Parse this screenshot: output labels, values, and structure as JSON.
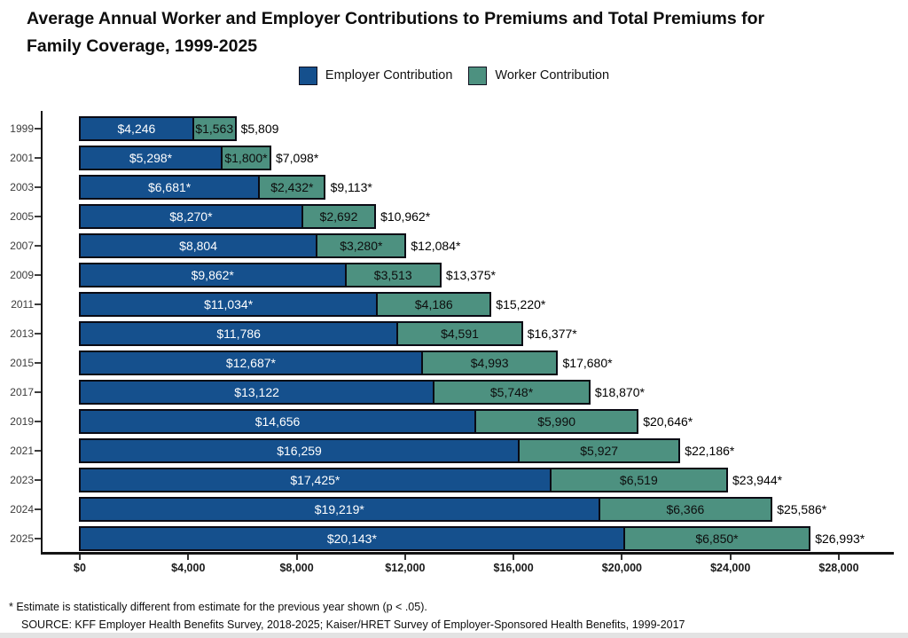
{
  "title": {
    "line1": "Average Annual Worker and Employer Contributions to Premiums and Total Premiums for",
    "line2": "Family Coverage, 1999-2025",
    "full": "Average Annual Worker and Employer Contributions to Premiums and Total Premiums for Family Coverage, 1999-2025"
  },
  "legend": [
    {
      "label": "Employer Contribution",
      "color": "#15508D"
    },
    {
      "label": "Worker Contribution",
      "color": "#4D9180"
    }
  ],
  "chart_data": {
    "type": "bar",
    "orientation": "horizontal",
    "stacked": true,
    "xlim": [
      0,
      28000
    ],
    "grid": false,
    "legend_position": "top",
    "categories": [
      "1999",
      "2001",
      "2003",
      "2005",
      "2007",
      "2009",
      "2011",
      "2013",
      "2015",
      "2017",
      "2019",
      "2021",
      "2023",
      "2024",
      "2025"
    ],
    "series": [
      {
        "name": "Employer Contribution",
        "color": "#15508D",
        "values": [
          4246,
          5298,
          6681,
          8270,
          8804,
          9862,
          11034,
          11786,
          12687,
          13122,
          14656,
          16259,
          17425,
          19219,
          20143
        ],
        "labels": [
          "$4,246",
          "$5,298*",
          "$6,681*",
          "$8,270*",
          "$8,804",
          "$9,862*",
          "$11,034*",
          "$11,786",
          "$12,687*",
          "$13,122",
          "$14,656",
          "$16,259",
          "$17,425*",
          "$19,219*",
          "$20,143*"
        ]
      },
      {
        "name": "Worker Contribution",
        "color": "#4D9180",
        "values": [
          1563,
          1800,
          2432,
          2692,
          3280,
          3513,
          4186,
          4591,
          4993,
          5748,
          5990,
          5927,
          6519,
          6366,
          6850
        ],
        "labels": [
          "$1,563",
          "$1,800*",
          "$2,432*",
          "$2,692",
          "$3,280*",
          "$3,513",
          "$4,186",
          "$4,591",
          "$4,993",
          "$5,748*",
          "$5,990",
          "$5,927",
          "$6,519",
          "$6,366",
          "$6,850*"
        ]
      }
    ],
    "totals": {
      "values": [
        5809,
        7098,
        9113,
        10962,
        12084,
        13375,
        15220,
        16377,
        17680,
        18870,
        20646,
        22186,
        23944,
        25586,
        26993
      ],
      "labels": [
        "$5,809",
        "$7,098*",
        "$9,113*",
        "$10,962*",
        "$12,084*",
        "$13,375*",
        "$15,220*",
        "$16,377*",
        "$17,680*",
        "$18,870*",
        "$20,646*",
        "$22,186*",
        "$23,944*",
        "$25,586*",
        "$26,993*"
      ]
    },
    "x_ticks": {
      "values": [
        0,
        4000,
        8000,
        12000,
        16000,
        20000,
        24000,
        28000
      ],
      "labels": [
        "$0",
        "$4,000",
        "$8,000",
        "$12,000",
        "$16,000",
        "$20,000",
        "$24,000",
        "$28,000"
      ]
    }
  },
  "footnotes": [
    "* Estimate is statistically different from estimate for the previous year shown (p < .05).",
    "SOURCE: KFF Employer Health Benefits Survey, 2018-2025; Kaiser/HRET Survey of Employer-Sponsored Health Benefits, 1999-2017"
  ]
}
